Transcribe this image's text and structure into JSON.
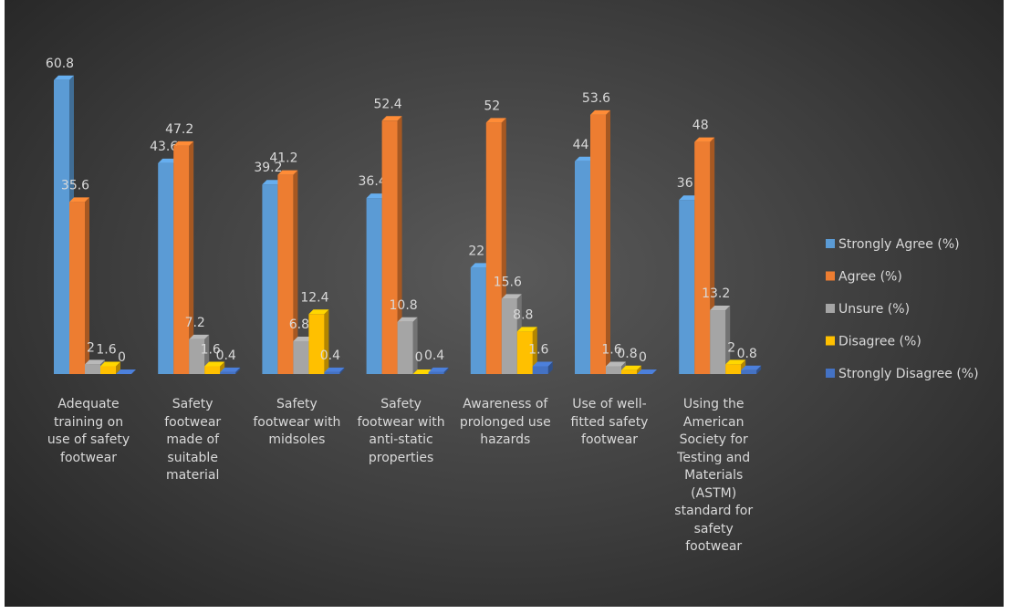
{
  "chart_data": {
    "type": "bar3d",
    "categories": [
      "Adequate training on use of safety footwear",
      "Safety footwear made of suitable material",
      "Safety footwear with midsoles",
      "Safety footwear with anti-static properties",
      "Awareness of prolonged use hazards",
      "Use of well-fitted safety footwear",
      "Using the American Society for Testing and Materials (ASTM) standard for safety footwear"
    ],
    "series": [
      {
        "name": "Strongly Agree (%)",
        "color": "#5b9bd5",
        "values": [
          60.8,
          43.6,
          39.2,
          36.4,
          22,
          44,
          36
        ]
      },
      {
        "name": "Agree (%)",
        "color": "#ed7d31",
        "values": [
          35.6,
          47.2,
          41.2,
          52.4,
          52,
          53.6,
          48
        ]
      },
      {
        "name": "Unsure (%)",
        "color": "#a5a5a5",
        "values": [
          2,
          7.2,
          6.8,
          10.8,
          15.6,
          1.6,
          13.2
        ]
      },
      {
        "name": "Disagree (%)",
        "color": "#ffc000",
        "values": [
          1.6,
          1.6,
          12.4,
          0,
          8.8,
          0.8,
          2
        ]
      },
      {
        "name": "Strongly Disagree (%)",
        "color": "#4472c4",
        "values": [
          0,
          0.4,
          0.4,
          0.4,
          1.6,
          0,
          0.8
        ]
      }
    ],
    "legend": "right"
  }
}
